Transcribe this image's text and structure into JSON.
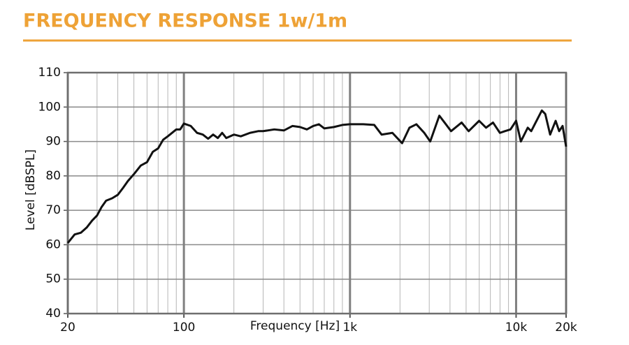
{
  "chart_data": {
    "type": "line",
    "title": "FREQUENCY RESPONSE 1w/1m",
    "x_label": "Frequency [Hz]",
    "y_label": "Level [dBSPL]",
    "x_scale": "log",
    "grid": true,
    "color": "#111111",
    "xlim": [
      20,
      20000
    ],
    "ylim": [
      40,
      110
    ],
    "xticks": [
      20,
      100,
      {
        "value": 1000,
        "label": "1k"
      },
      {
        "value": 10000,
        "label": "10k"
      },
      {
        "value": 20000,
        "label": "20k"
      }
    ],
    "x_minor_ticks": [
      30,
      40,
      50,
      60,
      70,
      80,
      90,
      200,
      300,
      400,
      500,
      600,
      700,
      800,
      900,
      2000,
      3000,
      4000,
      5000,
      6000,
      7000,
      8000,
      9000
    ],
    "yticks": [
      40,
      50,
      60,
      70,
      80,
      90,
      100,
      110
    ],
    "x": [
      20,
      22,
      24,
      26,
      28,
      30,
      32,
      34,
      37,
      40,
      43,
      46,
      50,
      55,
      60,
      65,
      70,
      75,
      80,
      90,
      95,
      100,
      110,
      120,
      130,
      140,
      150,
      160,
      170,
      180,
      200,
      220,
      250,
      280,
      300,
      350,
      400,
      450,
      500,
      550,
      600,
      650,
      700,
      800,
      900,
      1000,
      1200,
      1400,
      1550,
      1800,
      2060,
      2280,
      2510,
      2800,
      3040,
      3450,
      4060,
      4700,
      5180,
      5990,
      6590,
      7260,
      7990,
      8560,
      9250,
      10000,
      10680,
      11750,
      12330,
      14290,
      14980,
      16030,
      17300,
      18160,
      19050,
      20000
    ],
    "values": [
      60.5,
      63,
      63.5,
      65,
      67,
      68.5,
      71,
      72.8,
      73.5,
      74.5,
      76.5,
      78.5,
      80.5,
      83,
      84,
      87,
      88,
      90.5,
      91.5,
      93.5,
      93.5,
      95.2,
      94.5,
      92.5,
      92,
      90.8,
      92,
      91,
      92.5,
      91,
      92,
      91.5,
      92.5,
      93,
      93,
      93.5,
      93.2,
      94.5,
      94.2,
      93.5,
      94.5,
      95,
      93.8,
      94.2,
      94.8,
      95,
      95,
      94.8,
      92,
      92.5,
      89.5,
      94,
      95,
      92.5,
      90,
      97.5,
      93,
      95.5,
      93,
      96,
      94,
      95.5,
      92.5,
      93,
      93.5,
      96,
      90,
      94,
      93,
      99,
      98,
      92,
      96,
      93,
      94.5,
      88.5
    ]
  }
}
